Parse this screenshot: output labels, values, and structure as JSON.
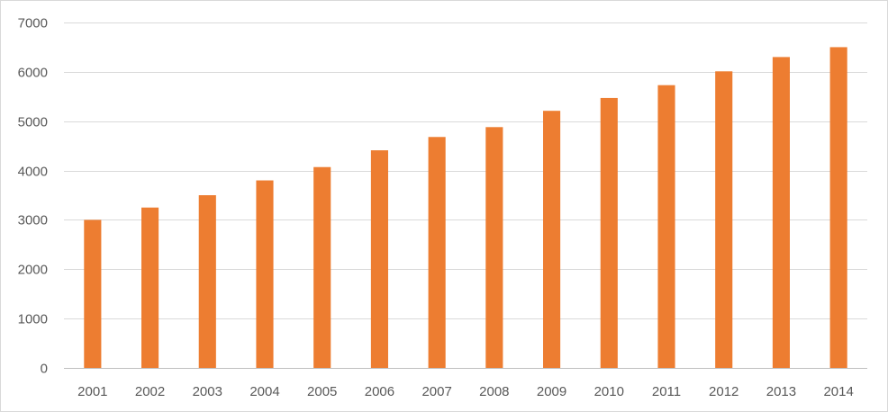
{
  "chart_data": {
    "type": "bar",
    "categories": [
      "2001",
      "2002",
      "2003",
      "2004",
      "2005",
      "2006",
      "2007",
      "2008",
      "2009",
      "2010",
      "2011",
      "2012",
      "2013",
      "2014"
    ],
    "values": [
      3000,
      3250,
      3500,
      3800,
      4070,
      4410,
      4680,
      4880,
      5210,
      5470,
      5730,
      6010,
      6300,
      6500
    ],
    "title": "",
    "xlabel": "",
    "ylabel": "",
    "ylim": [
      0,
      7000
    ],
    "yticks": [
      "0",
      "1000",
      "2000",
      "3000",
      "4000",
      "5000",
      "6000",
      "7000"
    ],
    "grid": true,
    "legend": "none",
    "bar_color": "#ED7D31",
    "gridline_color": "#D9D9D9",
    "axis_color": "#BFBFBF",
    "label_color": "#595959"
  }
}
